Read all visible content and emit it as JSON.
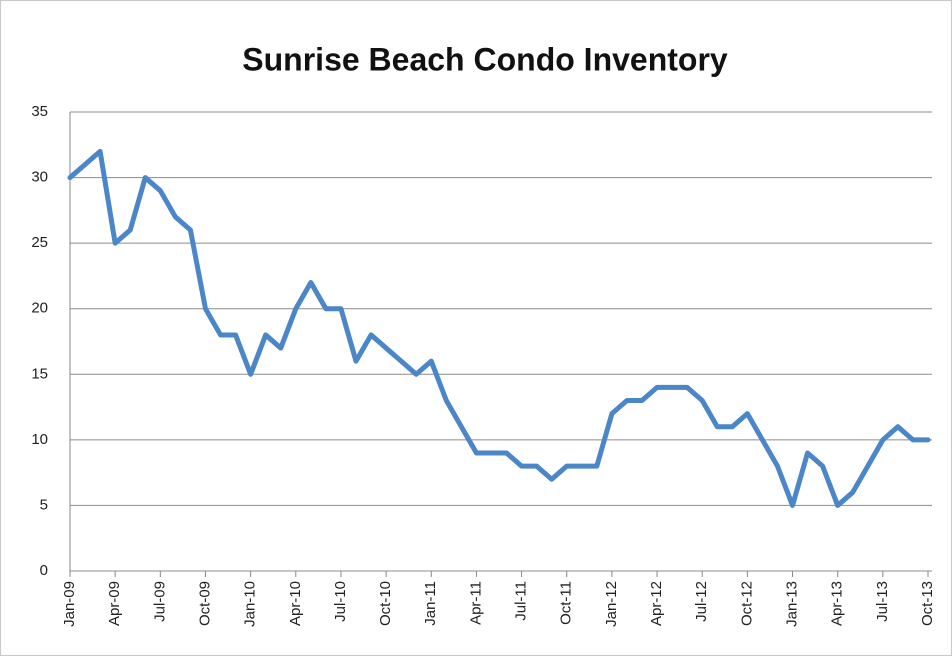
{
  "chart_data": {
    "type": "line",
    "title": "Sunrise Beach Condo Inventory",
    "categories": [
      "Jan-09",
      null,
      null,
      "Apr-09",
      null,
      null,
      "Jul-09",
      null,
      null,
      "Oct-09",
      null,
      null,
      "Jan-10",
      null,
      null,
      "Apr-10",
      null,
      null,
      "Jul-10",
      null,
      null,
      "Oct-10",
      null,
      null,
      "Jan-11",
      null,
      null,
      "Apr-11",
      null,
      null,
      "Jul-11",
      null,
      null,
      "Oct-11",
      null,
      null,
      "Jan-12",
      null,
      null,
      "Apr-12",
      null,
      null,
      "Jul-12",
      null,
      null,
      "Oct-12",
      null,
      null,
      "Jan-13",
      null,
      null,
      "Apr-13",
      null,
      null,
      "Jul-13",
      null,
      null,
      "Oct-13"
    ],
    "values": [
      30,
      31,
      32,
      25,
      26,
      30,
      29,
      27,
      26,
      20,
      18,
      18,
      15,
      18,
      17,
      20,
      22,
      20,
      20,
      16,
      18,
      17,
      16,
      15,
      16,
      13,
      11,
      9,
      9,
      9,
      8,
      8,
      7,
      8,
      8,
      8,
      12,
      13,
      13,
      14,
      14,
      14,
      13,
      11,
      11,
      12,
      10,
      8,
      5,
      9,
      8,
      5,
      6,
      8,
      10,
      11,
      10,
      10
    ],
    "color": "#4a86c8",
    "ylim": [
      0,
      35
    ],
    "yticks": [
      0,
      5,
      10,
      15,
      20,
      25,
      30,
      35
    ],
    "grid": true
  }
}
